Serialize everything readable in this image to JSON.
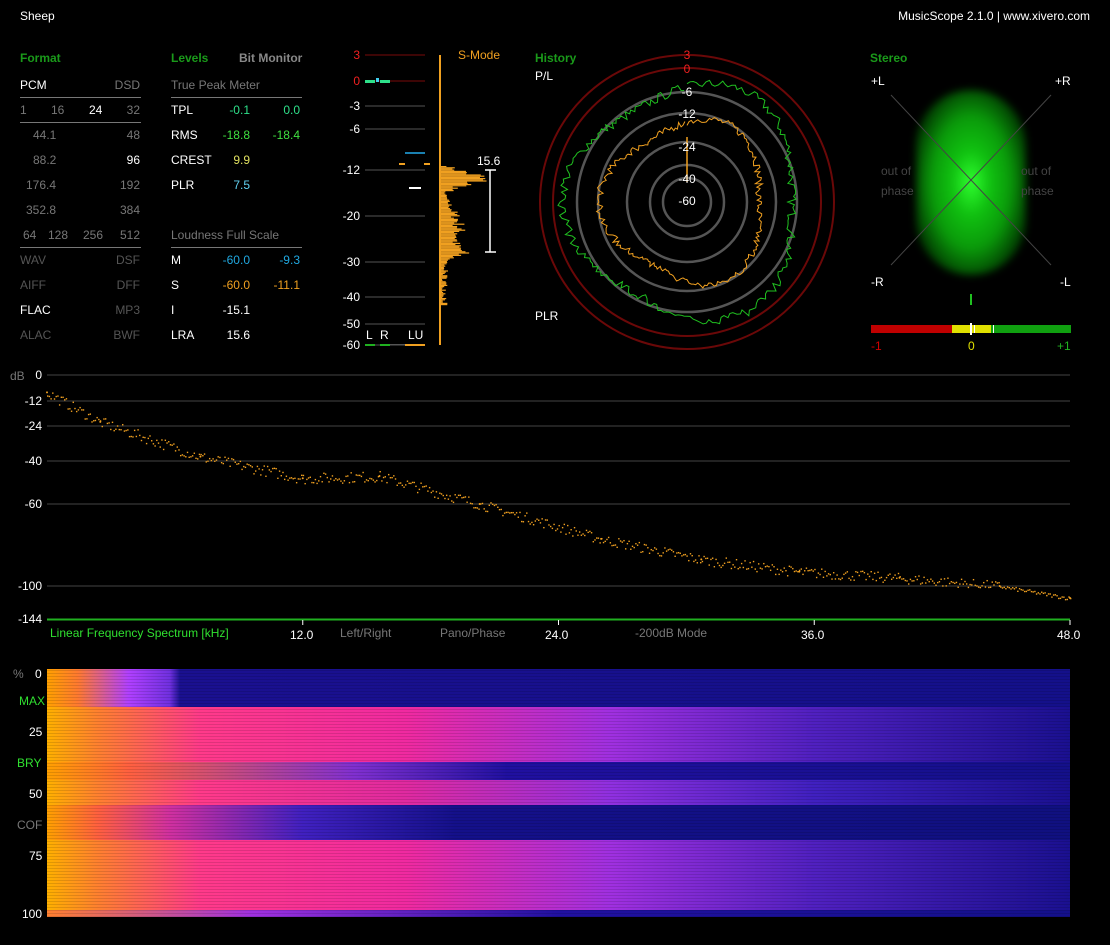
{
  "title": "Sheep",
  "app": "MusicScope 2.1.0 | www.xivero.com",
  "format": {
    "header": "Format",
    "pcm": "PCM",
    "dsd": "DSD",
    "bits": [
      "1",
      "16",
      "24",
      "32"
    ],
    "bits_active": "24",
    "pcm_rates": [
      [
        "44.1",
        "48"
      ],
      [
        "88.2",
        "96"
      ],
      [
        "176.4",
        "192"
      ],
      [
        "352.8",
        "384"
      ]
    ],
    "active_rate": "96",
    "dsd_rates": [
      "64",
      "128",
      "256",
      "512"
    ],
    "files": [
      [
        "WAV",
        "DSF"
      ],
      [
        "AIFF",
        "DFF"
      ],
      [
        "FLAC",
        "MP3"
      ],
      [
        "ALAC",
        "BWF"
      ]
    ],
    "active_file": "FLAC"
  },
  "levels": {
    "header": "Levels",
    "bit_monitor": "Bit Monitor",
    "tpm_title": "True Peak Meter",
    "tpl": {
      "label": "TPL",
      "l": "-0.1",
      "r": "0.0"
    },
    "rms": {
      "label": "RMS",
      "l": "-18.8",
      "r": "-18.4"
    },
    "crest": {
      "label": "CREST",
      "v": "9.9"
    },
    "plr": {
      "label": "PLR",
      "v": "7.5"
    },
    "lfs_title": "Loudness Full Scale",
    "m": {
      "label": "M",
      "a": "-60.0",
      "b": "-9.3"
    },
    "s": {
      "label": "S",
      "a": "-60.0",
      "b": "-11.1"
    },
    "i": {
      "label": "I",
      "v": "-15.1"
    },
    "lra": {
      "label": "LRA",
      "v": "15.6"
    }
  },
  "meter": {
    "scale": [
      "3",
      "0",
      "-3",
      "-6",
      "-12",
      "-20",
      "-30",
      "-40",
      "-50",
      "-60"
    ],
    "mode": "S-Mode",
    "lra_value": "15.6",
    "labels": {
      "l": "L",
      "r": "R",
      "lu": "LU"
    }
  },
  "history": {
    "header": "History",
    "pl": "P/L",
    "plr": "PLR",
    "rings": [
      "3",
      "0",
      "-6",
      "-12",
      "-24",
      "-40",
      "-60"
    ]
  },
  "stereo": {
    "header": "Stereo",
    "pl": "+L",
    "pr": "+R",
    "mr": "-R",
    "ml": "-L",
    "oop1": "out of",
    "oop2": "phase",
    "corr": {
      "min": "-1",
      "mid": "0",
      "max": "+1",
      "value": 0.0
    }
  },
  "spectrum": {
    "unit": "dB",
    "yticks": [
      "0",
      "-12",
      "-24",
      "-40",
      "-60",
      "-100",
      "-144"
    ],
    "title": "Linear Frequency Spectrum [kHz]",
    "xticks": [
      "12.0",
      "24.0",
      "36.0",
      "48.0"
    ],
    "modes": [
      "Left/Right",
      "Pano/Phase",
      "-200dB Mode"
    ]
  },
  "chart_data": {
    "type": "scatter",
    "xlabel": "Linear Frequency Spectrum [kHz]",
    "ylabel": "dB",
    "xlim": [
      0,
      48
    ],
    "yticks": [
      0,
      -12,
      -24,
      -40,
      -60,
      -100,
      -144
    ],
    "x": [
      0,
      2.5,
      7.2,
      12,
      15.6,
      20.3,
      26,
      30.7,
      35.3,
      40,
      44.7,
      48
    ],
    "y": [
      -8,
      -22,
      -38,
      -48,
      -47,
      -60,
      -77,
      -87,
      -93,
      -96,
      -100,
      -116
    ],
    "color": "#f0a020"
  },
  "spectrogram": {
    "unit": "%",
    "labels": [
      "0",
      "MAX",
      "25",
      "BRY",
      "50",
      "COF",
      "75",
      "100"
    ]
  }
}
